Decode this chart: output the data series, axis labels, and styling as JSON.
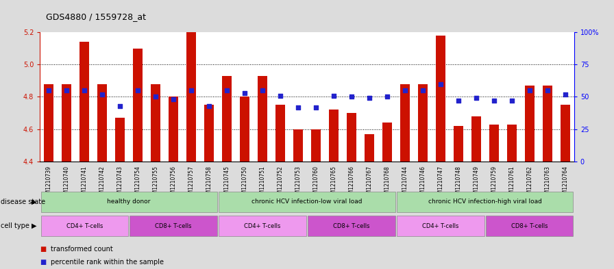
{
  "title": "GDS4880 / 1559728_at",
  "samples": [
    "GSM1210739",
    "GSM1210740",
    "GSM1210741",
    "GSM1210742",
    "GSM1210743",
    "GSM1210754",
    "GSM1210755",
    "GSM1210756",
    "GSM1210757",
    "GSM1210758",
    "GSM1210745",
    "GSM1210750",
    "GSM1210751",
    "GSM1210752",
    "GSM1210753",
    "GSM1210760",
    "GSM1210765",
    "GSM1210766",
    "GSM1210767",
    "GSM1210768",
    "GSM1210744",
    "GSM1210746",
    "GSM1210747",
    "GSM1210748",
    "GSM1210749",
    "GSM1210759",
    "GSM1210761",
    "GSM1210762",
    "GSM1210763",
    "GSM1210764"
  ],
  "bar_values": [
    4.88,
    4.88,
    5.14,
    4.88,
    4.67,
    5.1,
    4.88,
    4.8,
    5.2,
    4.75,
    4.93,
    4.8,
    4.93,
    4.75,
    4.6,
    4.6,
    4.72,
    4.7,
    4.57,
    4.64,
    4.88,
    4.88,
    5.18,
    4.62,
    4.68,
    4.63,
    4.63,
    4.87,
    4.87,
    4.75
  ],
  "percentile_values": [
    55,
    55,
    55,
    52,
    43,
    55,
    50,
    48,
    55,
    43,
    55,
    53,
    55,
    51,
    42,
    42,
    51,
    50,
    49,
    50,
    55,
    55,
    60,
    47,
    49,
    47,
    47,
    55,
    55,
    52
  ],
  "bar_color": "#CC1100",
  "dot_color": "#2222CC",
  "ylim_left": [
    4.4,
    5.2
  ],
  "ylim_right": [
    0,
    100
  ],
  "yticks_left": [
    4.4,
    4.6,
    4.8,
    5.0,
    5.2
  ],
  "yticks_right": [
    0,
    25,
    50,
    75,
    100
  ],
  "ytick_labels_right": [
    "0",
    "25",
    "50",
    "75",
    "100%"
  ],
  "grid_values": [
    4.6,
    4.8,
    5.0
  ],
  "background_color": "#DCDCDC",
  "plot_bg_color": "#FFFFFF",
  "disease_state_label": "disease state",
  "cell_type_label": "cell type",
  "legend_bar_label": "transformed count",
  "legend_dot_label": "percentile rank within the sample",
  "disease_configs": [
    [
      0,
      10,
      "healthy donor",
      "#AADDAA"
    ],
    [
      10,
      20,
      "chronic HCV infection-low viral load",
      "#AADDAA"
    ],
    [
      20,
      30,
      "chronic HCV infection-high viral load",
      "#AADDAA"
    ]
  ],
  "cell_configs": [
    [
      0,
      5,
      "CD4+ T-cells",
      "#EE99EE"
    ],
    [
      5,
      10,
      "CD8+ T-cells",
      "#CC55CC"
    ],
    [
      10,
      15,
      "CD4+ T-cells",
      "#EE99EE"
    ],
    [
      15,
      20,
      "CD8+ T-cells",
      "#CC55CC"
    ],
    [
      20,
      25,
      "CD4+ T-cells",
      "#EE99EE"
    ],
    [
      25,
      30,
      "CD8+ T-cells",
      "#CC55CC"
    ]
  ]
}
